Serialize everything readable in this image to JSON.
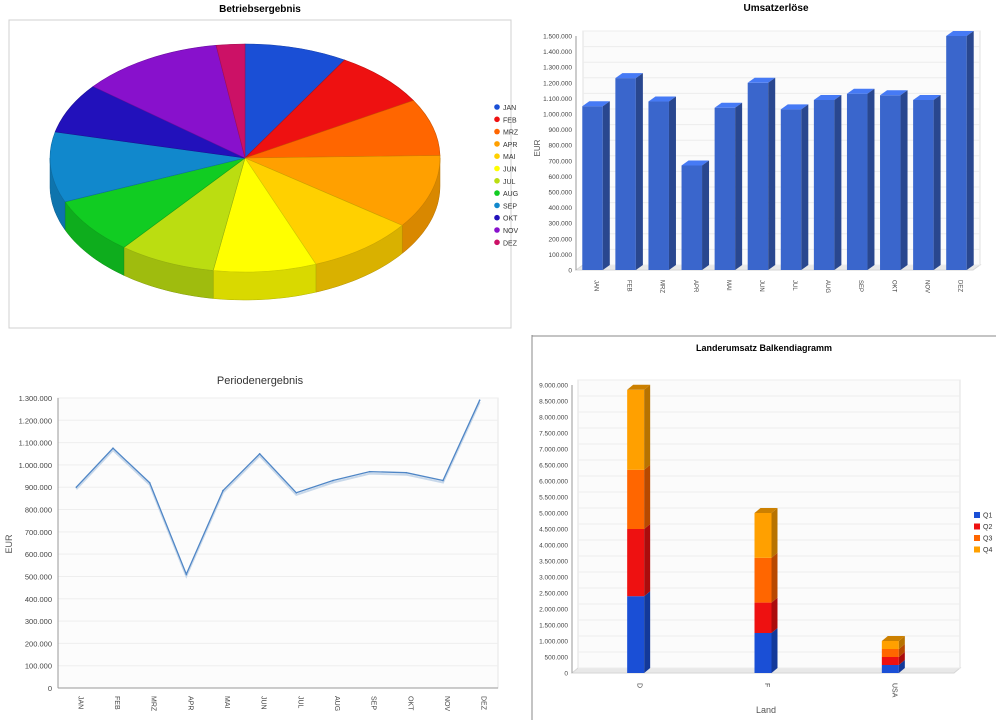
{
  "charts": {
    "pie": {
      "title": "Betriebsergebnis",
      "type": "pie",
      "categories": [
        "JAN",
        "FEB",
        "MRZ",
        "APR",
        "MAI",
        "JUN",
        "JUL",
        "AUG",
        "SEP",
        "OKT",
        "NOV",
        "DEZ"
      ],
      "values": [
        9.0,
        8.5,
        8.5,
        11.0,
        9.5,
        9.0,
        8.5,
        8.5,
        10.5,
        7.5,
        12.5,
        2.5
      ],
      "colors": [
        "#1a4fd6",
        "#ee1111",
        "#ff6600",
        "#ffa000",
        "#ffd000",
        "#ffff00",
        "#bbdd11",
        "#11cc22",
        "#1188cc",
        "#2211bb",
        "#8811cc",
        "#cc1166"
      ],
      "legend_position": "right"
    },
    "umsatz": {
      "title": "Umsatzerlöse",
      "type": "bar",
      "ylabel": "EUR",
      "categories": [
        "JAN",
        "FEB",
        "MRZ",
        "APR",
        "MAI",
        "JUN",
        "JUL",
        "AUG",
        "SEP",
        "OKT",
        "NOV",
        "DEZ"
      ],
      "values": [
        1050000,
        1230000,
        1080000,
        670000,
        1040000,
        1200000,
        1030000,
        1090000,
        1130000,
        1120000,
        1090000,
        1500000
      ],
      "ylim": [
        0,
        1500000
      ],
      "yticks": [
        "0",
        "100.000",
        "200.000",
        "300.000",
        "400.000",
        "500.000",
        "600.000",
        "700.000",
        "800.000",
        "900.000",
        "1.000.000",
        "1.100.000",
        "1.200.000",
        "1.300.000",
        "1.400.000",
        "1.500.000"
      ],
      "color": "#3a66cc"
    },
    "perioden": {
      "title": "Periodenergebnis",
      "type": "line",
      "ylabel": "EUR",
      "categories": [
        "JAN",
        "FEB",
        "MRZ",
        "APR",
        "MAI",
        "JUN",
        "JUL",
        "AUG",
        "SEP",
        "OKT",
        "NOV",
        "DEZ"
      ],
      "values": [
        900000,
        1075000,
        920000,
        510000,
        885000,
        1050000,
        875000,
        930000,
        970000,
        965000,
        930000,
        1290000
      ],
      "ylim": [
        0,
        1300000
      ],
      "yticks": [
        "0",
        "100.000",
        "200.000",
        "300.000",
        "400.000",
        "500.000",
        "600.000",
        "700.000",
        "800.000",
        "900.000",
        "1.000.000",
        "1.100.000",
        "1.200.000",
        "1.300.000"
      ],
      "color": "#4f86c6"
    },
    "laender": {
      "title": "Landerumsatz Balkendiagramm",
      "type": "bar",
      "xlabel": "Land",
      "categories": [
        "D",
        "F",
        "USA"
      ],
      "series": [
        {
          "name": "Q1",
          "values": [
            2400000,
            1250000,
            250000
          ],
          "color": "#1a4fd6"
        },
        {
          "name": "Q2",
          "values": [
            2100000,
            950000,
            250000
          ],
          "color": "#ee1111"
        },
        {
          "name": "Q3",
          "values": [
            1850000,
            1400000,
            250000
          ],
          "color": "#ff6600"
        },
        {
          "name": "Q4",
          "values": [
            2500000,
            1400000,
            250000
          ],
          "color": "#ffa000"
        }
      ],
      "ylim": [
        0,
        9000000
      ],
      "yticks": [
        "0",
        "500.000",
        "1.000.000",
        "1.500.000",
        "2.000.000",
        "2.500.000",
        "3.000.000",
        "3.500.000",
        "4.000.000",
        "4.500.000",
        "5.000.000",
        "5.500.000",
        "6.000.000",
        "6.500.000",
        "7.000.000",
        "7.500.000",
        "8.000.000",
        "8.500.000",
        "9.000.000"
      ],
      "legend_position": "right"
    }
  }
}
